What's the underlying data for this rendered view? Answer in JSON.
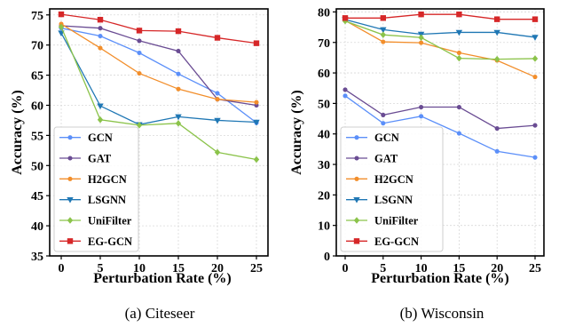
{
  "chart_data": [
    {
      "type": "line",
      "caption": "(a)  Citeseer",
      "xlabel": "Perturbation Rate (%)",
      "ylabel": "Accuracy (%)",
      "x": [
        0,
        5,
        10,
        15,
        20,
        25
      ],
      "xticks": [
        "0",
        "5",
        "10",
        "15",
        "20",
        "25"
      ],
      "yticks": [
        "35",
        "40",
        "45",
        "50",
        "55",
        "60",
        "65",
        "70",
        "75"
      ],
      "ylim": [
        35,
        76
      ],
      "grid": true,
      "legend_position": "lower-left",
      "series": [
        {
          "name": "GCN",
          "color": "#5b8ff9",
          "marker": "circle",
          "values": [
            72.8,
            71.5,
            68.7,
            65.2,
            62.0,
            57.1
          ]
        },
        {
          "name": "GAT",
          "color": "#6a4c93",
          "marker": "circle",
          "values": [
            73.2,
            72.8,
            70.7,
            69.0,
            61.0,
            60.0
          ]
        },
        {
          "name": "H2GCN",
          "color": "#f28e2b",
          "marker": "circle",
          "values": [
            73.5,
            69.5,
            65.3,
            62.7,
            61.0,
            60.5
          ]
        },
        {
          "name": "LSGNN",
          "color": "#1f77b4",
          "marker": "triangle-down",
          "values": [
            72.0,
            59.9,
            56.8,
            58.1,
            57.5,
            57.2
          ]
        },
        {
          "name": "UniFilter",
          "color": "#8bc34a",
          "marker": "diamond",
          "values": [
            73.0,
            57.6,
            56.7,
            57.0,
            52.2,
            51.0
          ]
        },
        {
          "name": "EG-GCN",
          "color": "#d62728",
          "marker": "square",
          "values": [
            75.1,
            74.2,
            72.4,
            72.3,
            71.2,
            70.3
          ]
        }
      ]
    },
    {
      "type": "line",
      "caption": "(b)  Wisconsin",
      "xlabel": "Perturbation Rate (%)",
      "ylabel": "Accuracy (%)",
      "x": [
        0,
        5,
        10,
        15,
        20,
        25
      ],
      "xticks": [
        "0",
        "5",
        "10",
        "15",
        "20",
        "25"
      ],
      "yticks": [
        "0",
        "10",
        "20",
        "30",
        "40",
        "50",
        "60",
        "70",
        "80"
      ],
      "ylim": [
        0,
        81
      ],
      "grid": true,
      "legend_position": "lower-left",
      "series": [
        {
          "name": "GCN",
          "color": "#5b8ff9",
          "marker": "circle",
          "values": [
            52.5,
            43.5,
            45.8,
            40.2,
            34.3,
            32.3
          ]
        },
        {
          "name": "GAT",
          "color": "#6a4c93",
          "marker": "circle",
          "values": [
            54.5,
            46.2,
            48.8,
            48.8,
            41.8,
            42.8
          ]
        },
        {
          "name": "H2GCN",
          "color": "#f28e2b",
          "marker": "circle",
          "values": [
            77.2,
            70.2,
            69.9,
            66.6,
            64.1,
            58.7
          ]
        },
        {
          "name": "LSGNN",
          "color": "#1f77b4",
          "marker": "triangle-down",
          "values": [
            77.5,
            74.2,
            72.7,
            73.3,
            73.3,
            71.7
          ]
        },
        {
          "name": "UniFilter",
          "color": "#8bc34a",
          "marker": "diamond",
          "values": [
            77.0,
            72.5,
            71.6,
            64.8,
            64.5,
            64.7
          ]
        },
        {
          "name": "EG-GCN",
          "color": "#d62728",
          "marker": "square",
          "values": [
            78.0,
            78.0,
            79.2,
            79.2,
            77.6,
            77.6
          ]
        }
      ]
    }
  ]
}
